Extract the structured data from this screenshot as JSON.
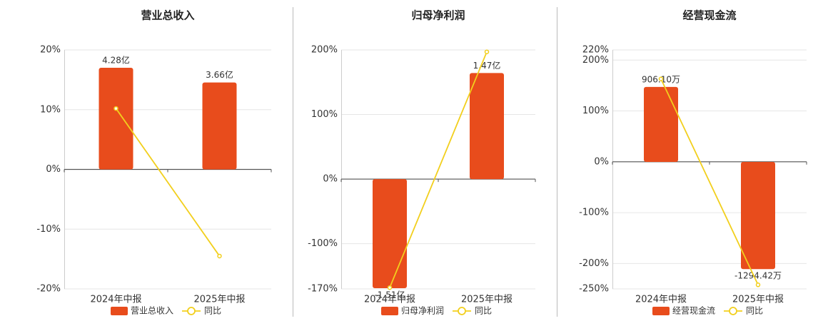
{
  "chart_data": [
    {
      "type": "bar_line",
      "title": "营业总收入",
      "categories": [
        "2024年中报",
        "2025年中报"
      ],
      "series": [
        {
          "name": "营业总收入",
          "color": "#e84c1c",
          "axis": "y2",
          "values": [
            4.28,
            3.66
          ],
          "value_labels": [
            "4.28亿",
            "3.66亿"
          ]
        },
        {
          "name": "同比",
          "color": "#f2cf1d",
          "values": [
            10.2,
            -14.5
          ]
        }
      ],
      "ylim": [
        -20,
        20
      ],
      "yticks": [
        {
          "value": 20,
          "label": "20%"
        },
        {
          "value": 10,
          "label": "10%"
        },
        {
          "value": 0,
          "label": "0%"
        },
        {
          "value": -10,
          "label": "-10%"
        },
        {
          "value": -20,
          "label": "-20%"
        }
      ],
      "y2lim": [
        -5.03,
        5.03
      ],
      "grid": true
    },
    {
      "type": "bar_line",
      "title": "归母净利润",
      "categories": [
        "2024年中报",
        "2025年中报"
      ],
      "series": [
        {
          "name": "归母净利润",
          "color": "#e84c1c",
          "axis": "y2",
          "values": [
            -1.51,
            1.47
          ],
          "value_labels": [
            "-1.51亿",
            "1.47亿"
          ]
        },
        {
          "name": "同比",
          "color": "#f2cf1d",
          "values": [
            -168,
            197
          ]
        }
      ],
      "ylim": [
        -170,
        200
      ],
      "yticks": [
        {
          "value": 200,
          "label": "200%"
        },
        {
          "value": 100,
          "label": "100%"
        },
        {
          "value": 0,
          "label": "0%"
        },
        {
          "value": -100,
          "label": "-100%"
        },
        {
          "value": -170,
          "label": "-170%"
        }
      ],
      "y2lim": [
        -1.52,
        1.79
      ],
      "grid": true
    },
    {
      "type": "bar_line",
      "title": "经营现金流",
      "categories": [
        "2024年中报",
        "2025年中报"
      ],
      "series": [
        {
          "name": "经营现金流",
          "color": "#e84c1c",
          "axis": "y2",
          "values": [
            906.1,
            -1294.42
          ],
          "value_labels": [
            "906.10万",
            "-1294.42万"
          ]
        },
        {
          "name": "同比",
          "color": "#f2cf1d",
          "values": [
            163,
            -242
          ]
        }
      ],
      "ylim": [
        -250,
        220
      ],
      "yticks": [
        {
          "value": 220,
          "label": "220%"
        },
        {
          "value": 200,
          "label": "200%"
        },
        {
          "value": 100,
          "label": "100%"
        },
        {
          "value": 0,
          "label": "0%"
        },
        {
          "value": -100,
          "label": "-100%"
        },
        {
          "value": -200,
          "label": "-200%"
        },
        {
          "value": -250,
          "label": "-250%"
        }
      ],
      "y2lim": [
        -1534,
        1353
      ],
      "grid": true
    }
  ]
}
